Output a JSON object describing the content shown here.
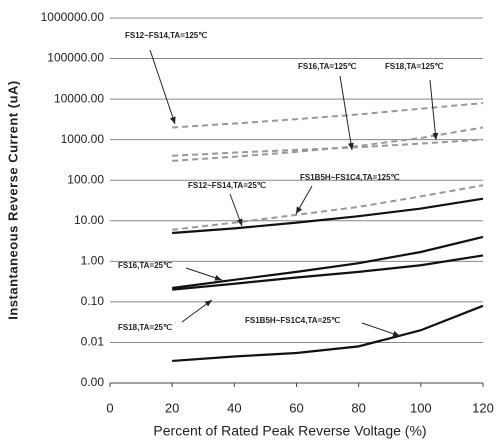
{
  "chart_data": {
    "type": "line",
    "x_label": "Percent of  Rated Peak Reverse Voltage (%)",
    "y_label": "Instantaneous Reverse Current (uA)",
    "x": [
      20,
      40,
      60,
      80,
      100,
      120
    ],
    "xlim": [
      0,
      120
    ],
    "xticks": [
      0,
      20,
      40,
      60,
      80,
      100,
      120
    ],
    "log_y": true,
    "ylim": [
      0.001,
      1000000
    ],
    "yticks": [
      {
        "value": 0.001,
        "label": "0.00"
      },
      0.01,
      {
        "value": 0.1,
        "label": "0.10"
      },
      {
        "value": 1,
        "label": "1.00"
      },
      {
        "value": 10,
        "label": "10.00"
      },
      {
        "value": 100,
        "label": "100.00"
      },
      {
        "value": 1000,
        "label": "1000.00"
      },
      {
        "value": 10000,
        "label": "10000.00"
      },
      {
        "value": 100000,
        "label": "100000.00"
      },
      {
        "value": 1000000,
        "label": "1000000.00"
      }
    ],
    "grid": true,
    "series": [
      {
        "name": "FS12~FS14,TA=125℃",
        "color": "#999999",
        "dashed": true,
        "values": [
          2000,
          2500,
          3200,
          4200,
          5800,
          8000
        ]
      },
      {
        "name": "FS16,TA=125℃",
        "color": "#999999",
        "dashed": true,
        "values": [
          300,
          380,
          500,
          700,
          1100,
          2000
        ]
      },
      {
        "name": "FS18,TA=125℃",
        "color": "#999999",
        "dashed": true,
        "values": [
          400,
          480,
          560,
          650,
          800,
          1000
        ]
      },
      {
        "name": "FS12~FS14,TA=25℃",
        "color": "#111111",
        "dashed": false,
        "values": [
          5,
          6.5,
          9,
          13,
          20,
          35
        ]
      },
      {
        "name": "FS1B5H~FS1C4,TA=125℃",
        "color": "#999999",
        "dashed": true,
        "values": [
          6,
          9,
          14,
          22,
          40,
          75
        ]
      },
      {
        "name": "FS16,TA=25℃",
        "color": "#111111",
        "dashed": false,
        "values": [
          0.22,
          0.35,
          0.55,
          0.9,
          1.7,
          4
        ]
      },
      {
        "name": "FS18,TA=25℃",
        "color": "#111111",
        "dashed": false,
        "values": [
          0.2,
          0.28,
          0.4,
          0.55,
          0.8,
          1.4
        ]
      },
      {
        "name": "FS1B5H~FS1C4,TA=25℃",
        "color": "#111111",
        "dashed": false,
        "values": [
          0.0035,
          0.0045,
          0.0055,
          0.008,
          0.02,
          0.08
        ]
      }
    ]
  }
}
